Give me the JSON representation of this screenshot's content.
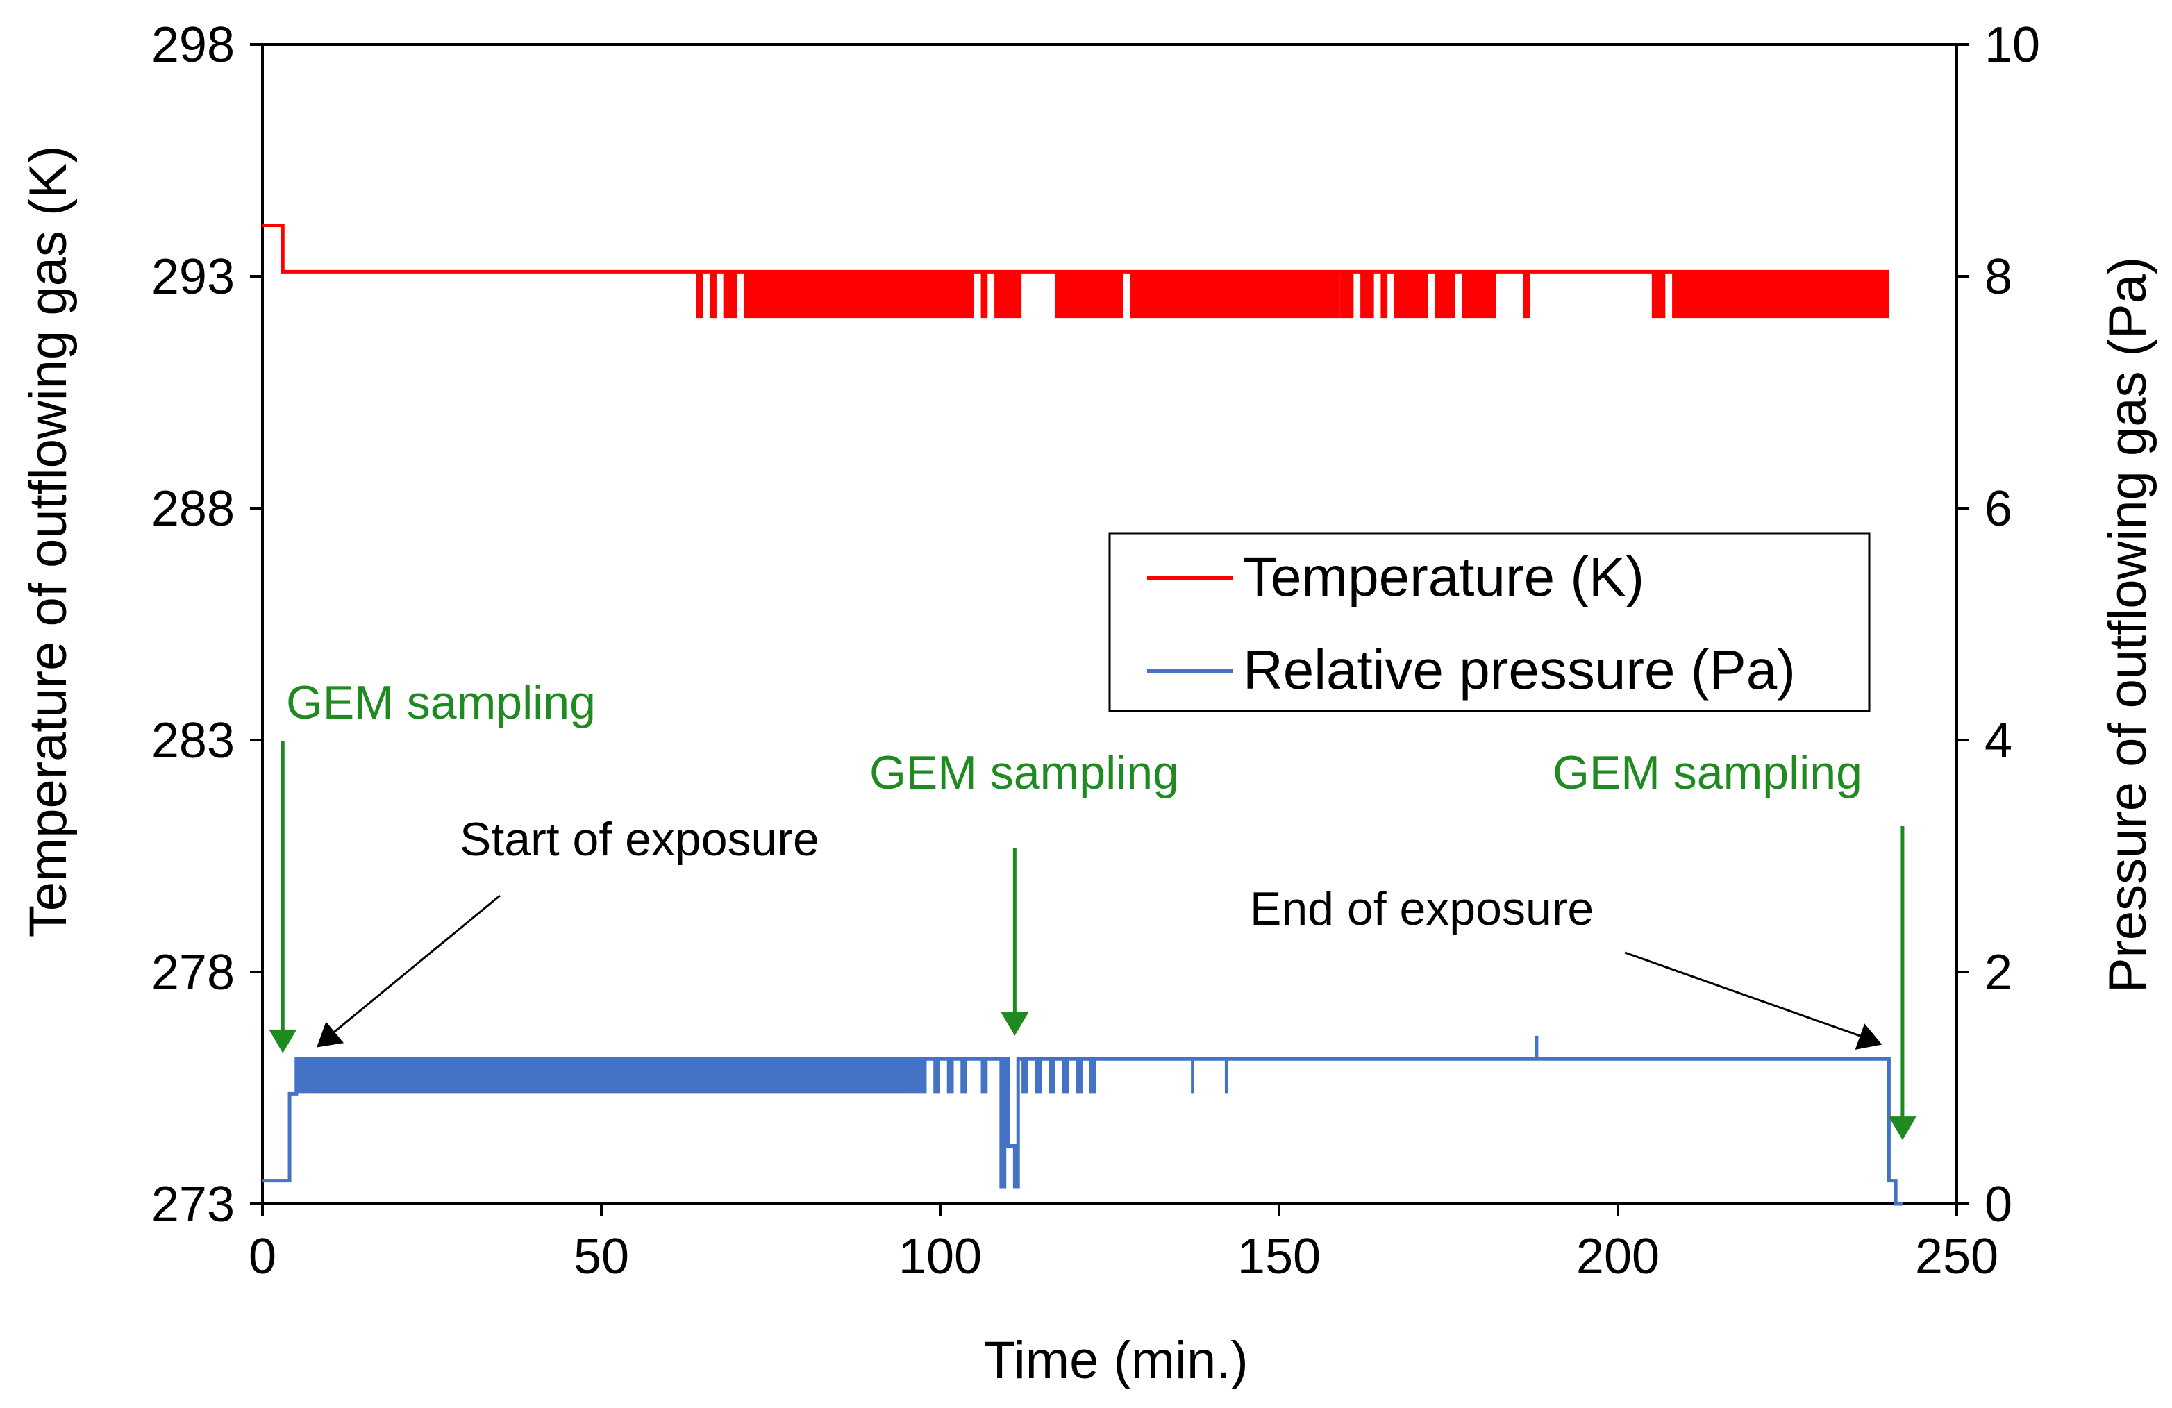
{
  "chart_data": {
    "type": "line",
    "title": "",
    "xlabel": "Time (min.)",
    "ylabel_left": "Temperature  of outflowing gas (K)",
    "ylabel_right": "Pressure of outflowing gas (Pa)",
    "xlim": [
      0,
      250
    ],
    "ylim_left": [
      273,
      298
    ],
    "ylim_right": [
      0,
      10
    ],
    "x_ticks": [
      0,
      50,
      100,
      150,
      200,
      250
    ],
    "y_left_ticks": [
      273,
      278,
      283,
      288,
      293,
      298
    ],
    "y_right_ticks": [
      0,
      2,
      4,
      6,
      8,
      10
    ],
    "grid": false,
    "legend": {
      "position": "center-right",
      "entries": [
        {
          "label": "Temperature (K)",
          "color": "#ff0000"
        },
        {
          "label": "Relative pressure (Pa)",
          "color": "#4472c4"
        }
      ]
    },
    "series": [
      {
        "name": "Temperature (K)",
        "axis": "left",
        "color": "#ff0000",
        "points": [
          [
            0,
            294.1
          ],
          [
            3,
            294.1
          ],
          [
            3,
            293.1
          ],
          [
            4,
            293.1
          ],
          [
            64,
            293.1
          ],
          [
            240,
            293.1
          ]
        ],
        "fluctuation_band": {
          "low": 292.1,
          "high": 293.1,
          "ranges": [
            [
              64,
              65
            ],
            [
              66,
              67
            ],
            [
              68,
              70
            ],
            [
              71,
              105
            ],
            [
              106,
              107
            ],
            [
              108,
              112
            ],
            [
              117,
              127
            ],
            [
              128,
              159
            ],
            [
              159,
              161
            ],
            [
              162,
              164
            ],
            [
              165,
              166
            ],
            [
              167,
              172
            ],
            [
              173,
              176
            ],
            [
              177,
              182
            ],
            [
              186,
              187
            ],
            [
              205,
              207
            ],
            [
              208,
              240
            ]
          ]
        }
      },
      {
        "name": "Relative pressure (Pa)",
        "axis": "right",
        "color": "#4472c4",
        "points": [
          [
            0,
            0.2
          ],
          [
            4,
            0.2
          ],
          [
            4,
            0.95
          ],
          [
            5,
            0.95
          ],
          [
            5,
            1.25
          ],
          [
            109,
            1.25
          ],
          [
            109,
            0.15
          ],
          [
            109.5,
            0.15
          ],
          [
            109.5,
            1.25
          ],
          [
            110,
            1.25
          ],
          [
            110,
            0.5
          ],
          [
            111,
            0.5
          ],
          [
            111,
            0.15
          ],
          [
            111.5,
            0.15
          ],
          [
            111.5,
            1.25
          ],
          [
            240,
            1.25
          ],
          [
            240,
            0.2
          ],
          [
            241,
            0.2
          ],
          [
            241,
            0
          ],
          [
            242,
            0
          ]
        ],
        "fluctuation_band": {
          "low": 0.95,
          "high": 1.25,
          "ranges": [
            [
              5,
              98
            ],
            [
              99,
              100
            ],
            [
              101,
              102
            ],
            [
              103,
              104
            ],
            [
              106,
              107
            ],
            [
              112,
              113
            ],
            [
              114,
              115
            ],
            [
              116,
              117
            ],
            [
              118,
              119
            ],
            [
              120,
              121
            ],
            [
              122,
              123
            ],
            [
              137,
              137.5
            ],
            [
              142,
              142.5
            ]
          ]
        },
        "spikes": [
          {
            "x": 188,
            "value": 1.45
          }
        ]
      }
    ],
    "annotations": [
      {
        "text": "GEM sampling",
        "color": "#1f8a1f",
        "x": 3,
        "value_right": 1.3
      },
      {
        "text": "GEM sampling",
        "color": "#1f8a1f",
        "x": 111,
        "value_right": 1.45
      },
      {
        "text": "GEM sampling",
        "color": "#1f8a1f",
        "x": 242,
        "value_right": 0.55
      },
      {
        "text": "Start of exposure",
        "color": "#000000",
        "x": 8,
        "value_right": 1.35
      },
      {
        "text": "End of exposure",
        "color": "#000000",
        "x": 240,
        "value_right": 1.35
      }
    ]
  }
}
